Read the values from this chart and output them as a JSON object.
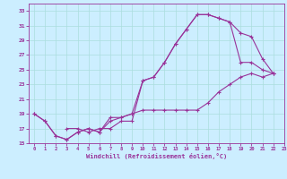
{
  "title": "",
  "xlabel": "Windchill (Refroidissement éolien,°C)",
  "bg_color": "#cceeff",
  "line_color": "#993399",
  "grid_color": "#aadddd",
  "xlim": [
    -0.5,
    23
  ],
  "ylim": [
    15,
    34
  ],
  "xticks": [
    0,
    1,
    2,
    3,
    4,
    5,
    6,
    7,
    8,
    9,
    10,
    11,
    12,
    13,
    14,
    15,
    16,
    17,
    18,
    19,
    20,
    21,
    22,
    23
  ],
  "yticks": [
    15,
    17,
    19,
    21,
    23,
    25,
    27,
    29,
    31,
    33
  ],
  "lines": [
    {
      "x": [
        0,
        1,
        2,
        3,
        4,
        5,
        6,
        7,
        8,
        9,
        10,
        11,
        12,
        13,
        14,
        15,
        16,
        17,
        18,
        19,
        20,
        21,
        22
      ],
      "y": [
        19,
        18,
        16,
        15.5,
        16.5,
        17,
        16.5,
        18,
        18.5,
        19,
        23.5,
        24,
        26,
        28.5,
        30.5,
        32.5,
        32.5,
        32,
        31.5,
        26,
        26,
        25,
        24.5
      ]
    },
    {
      "x": [
        0,
        1,
        2,
        3,
        4,
        5,
        6,
        7,
        8,
        9,
        10,
        11,
        12,
        13,
        14,
        15,
        16,
        17,
        18,
        19,
        20,
        21,
        22
      ],
      "y": [
        19,
        18,
        16,
        15.5,
        16.5,
        17,
        16.5,
        18.5,
        18.5,
        19,
        19.5,
        19.5,
        19.5,
        19.5,
        19.5,
        19.5,
        20.5,
        22,
        23,
        24,
        24.5,
        24,
        24.5
      ]
    },
    {
      "x": [
        3,
        4,
        5,
        6,
        7,
        8,
        9,
        10,
        11,
        12,
        13,
        14,
        15,
        16,
        17,
        18,
        19,
        20,
        21,
        22
      ],
      "y": [
        17,
        17,
        16.5,
        17,
        17,
        18,
        18,
        23.5,
        24,
        26,
        28.5,
        30.5,
        32.5,
        32.5,
        32,
        31.5,
        30,
        29.5,
        26.5,
        24.5
      ]
    }
  ]
}
